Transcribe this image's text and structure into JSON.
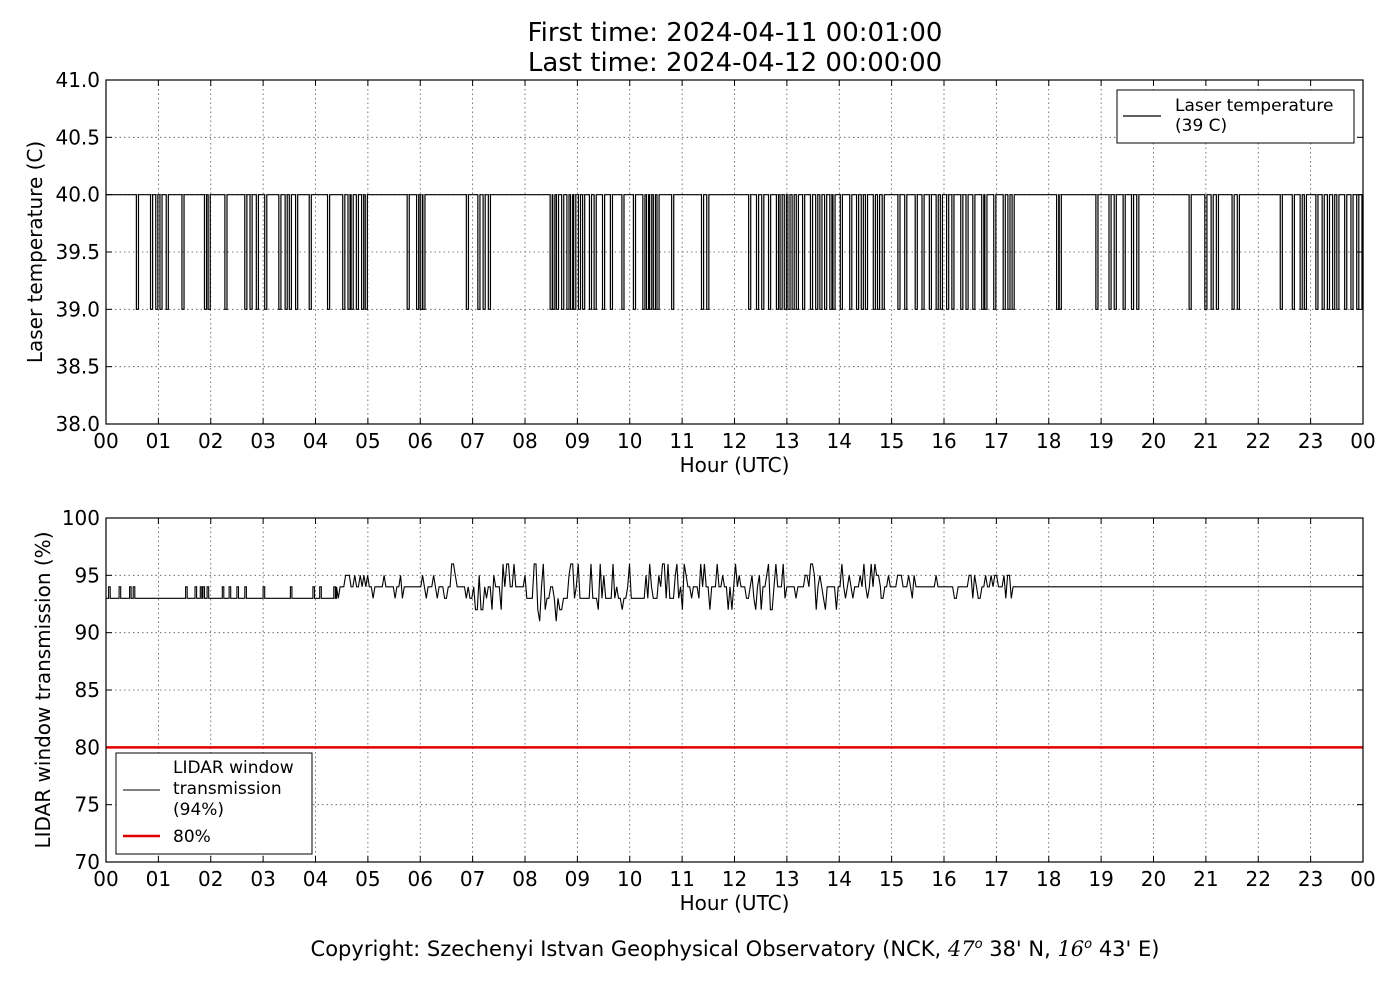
{
  "title": {
    "line1": "First time: 2024-04-11 00:01:00",
    "line2": "Last time: 2024-04-12 00:00:00"
  },
  "copyright": {
    "prefix": "Copyright: Szechenyi Istvan Geophysical Observatory (NCK, ",
    "lat_deg": "47",
    "lat_rest": " 38' N, ",
    "lon_deg": "16",
    "lon_rest": " 43' E)",
    "degree_mark": "o"
  },
  "colors": {
    "line": "#000000",
    "threshold": "#e00000",
    "grid": "#555555"
  },
  "chart_data": [
    {
      "type": "line",
      "title": "",
      "xlabel": "Hour (UTC)",
      "ylabel": "Laser temperature (C)",
      "xlim": [
        0,
        24
      ],
      "ylim": [
        38.0,
        41.0
      ],
      "x_ticks": [
        "00",
        "01",
        "02",
        "03",
        "04",
        "05",
        "06",
        "07",
        "08",
        "09",
        "10",
        "11",
        "12",
        "13",
        "14",
        "15",
        "16",
        "17",
        "18",
        "19",
        "20",
        "21",
        "22",
        "23",
        "00"
      ],
      "y_ticks": [
        "38.0",
        "38.5",
        "39.0",
        "39.5",
        "40.0",
        "40.5",
        "41.0"
      ],
      "grid": true,
      "legend_position": "top-right",
      "series": [
        {
          "name": "Laser temperature\n(39 C)",
          "color": "#000000",
          "baseline": 40.0,
          "dip_value": 39.0,
          "dip_hours": [
            0.58,
            0.85,
            0.95,
            1.03,
            1.15,
            1.45,
            1.88,
            1.95,
            2.27,
            2.65,
            2.75,
            2.87,
            3.03,
            3.3,
            3.42,
            3.5,
            3.62,
            3.88,
            4.23,
            4.52,
            4.62,
            4.68,
            4.78,
            4.88,
            4.95,
            5.75,
            5.93,
            6.0,
            6.05,
            6.88,
            7.1,
            7.2,
            7.3,
            8.48,
            8.53,
            8.6,
            8.7,
            8.8,
            8.87,
            8.93,
            9.02,
            9.1,
            9.23,
            9.32,
            9.48,
            9.63,
            9.85,
            10.07,
            10.25,
            10.32,
            10.38,
            10.45,
            10.52,
            10.8,
            11.37,
            11.47,
            12.27,
            12.42,
            12.52,
            12.65,
            12.8,
            12.87,
            12.95,
            13.02,
            13.1,
            13.18,
            13.3,
            13.45,
            13.55,
            13.63,
            13.72,
            13.82,
            13.88,
            14.02,
            14.2,
            14.33,
            14.42,
            14.5,
            14.65,
            14.73,
            14.82,
            15.12,
            15.25,
            15.45,
            15.58,
            15.72,
            15.85,
            15.93,
            16.05,
            16.15,
            16.32,
            16.42,
            16.55,
            16.72,
            16.78,
            16.95,
            17.13,
            17.22,
            17.3,
            18.15,
            18.2,
            18.9,
            19.15,
            19.25,
            19.42,
            19.58,
            19.68,
            20.68,
            20.98,
            21.1,
            21.2,
            21.5,
            21.6,
            22.42,
            22.65,
            22.8,
            22.88,
            23.1,
            23.22,
            23.32,
            23.42,
            23.5,
            23.65,
            23.77,
            23.88,
            23.98
          ],
          "dip_width_hours": 0.04
        }
      ]
    },
    {
      "type": "line",
      "title": "",
      "xlabel": "Hour (UTC)",
      "ylabel": "LIDAR window transmission (%)",
      "xlim": [
        0,
        24
      ],
      "ylim": [
        70,
        100
      ],
      "x_ticks": [
        "00",
        "01",
        "02",
        "03",
        "04",
        "05",
        "06",
        "07",
        "08",
        "09",
        "10",
        "11",
        "12",
        "13",
        "14",
        "15",
        "16",
        "17",
        "18",
        "19",
        "20",
        "21",
        "22",
        "23",
        "00"
      ],
      "y_ticks": [
        "70",
        "75",
        "80",
        "85",
        "90",
        "95",
        "100"
      ],
      "grid": true,
      "legend_position": "bottom-left",
      "series": [
        {
          "name": "LIDAR window\ntransmission\n(94%)",
          "color": "#000000",
          "segments": [
            {
              "x_range": [
                0.0,
                4.4
              ],
              "base": 93,
              "spikes_up": [
                0.05,
                0.25,
                0.45,
                0.52,
                1.52,
                1.7,
                1.8,
                1.85,
                1.93,
                2.22,
                2.35,
                2.5,
                2.65,
                3.0,
                3.52,
                3.95,
                4.08,
                4.35
              ]
            },
            {
              "x_range": [
                4.4,
                6.6
              ],
              "base": 93.5,
              "noise": [
                93,
                94,
                95
              ]
            },
            {
              "x_range": [
                6.6,
                8.0
              ],
              "base": 93.5,
              "noise": [
                92,
                93,
                94,
                95,
                96
              ]
            },
            {
              "x_range": [
                8.0,
                10.9
              ],
              "base": 93,
              "noise": [
                91,
                92,
                93,
                94,
                95,
                96
              ]
            },
            {
              "x_range": [
                10.9,
                14.8
              ],
              "base": 94,
              "noise": [
                92,
                93,
                94,
                95,
                96
              ]
            },
            {
              "x_range": [
                14.8,
                17.45
              ],
              "base": 94,
              "noise": [
                93,
                94,
                95
              ]
            },
            {
              "x_range": [
                17.45,
                24.0
              ],
              "base": 94
            }
          ]
        },
        {
          "name": "80%",
          "color": "#e00000",
          "constant": 80
        }
      ]
    }
  ]
}
